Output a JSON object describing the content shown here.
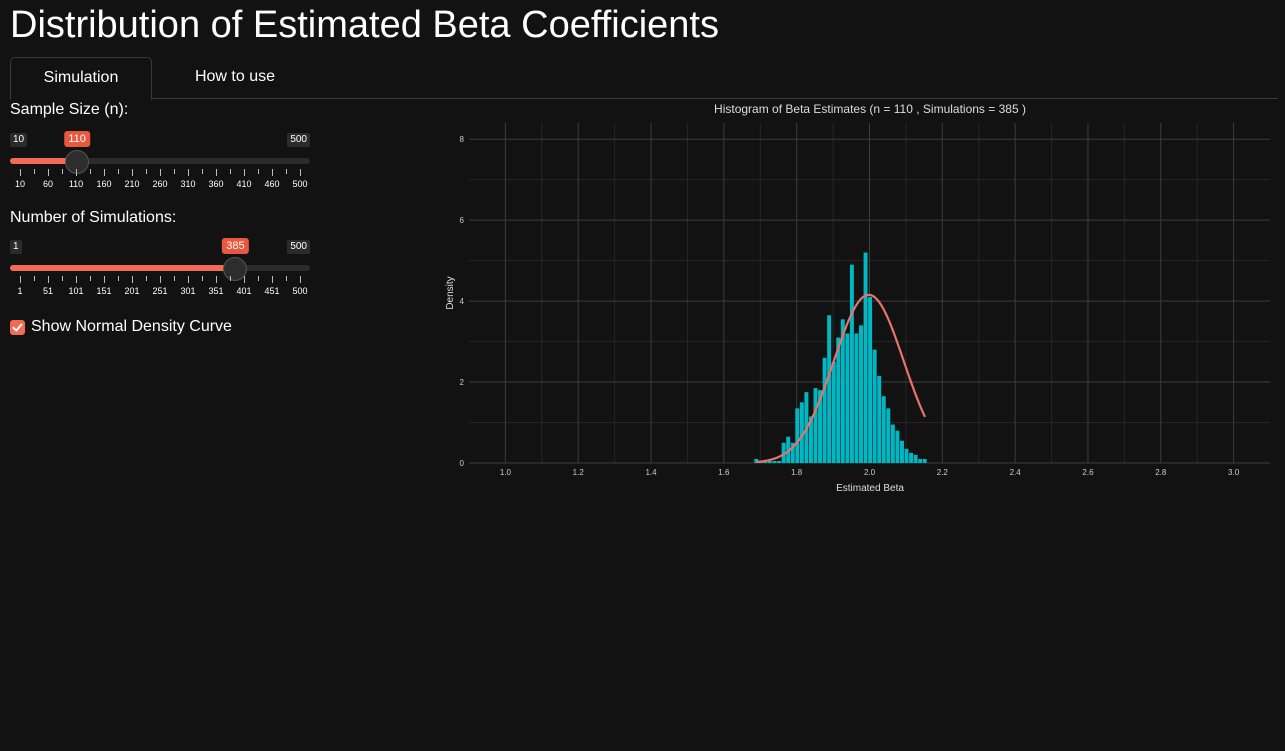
{
  "page": {
    "title": "Distribution of Estimated Beta Coefficients"
  },
  "tabs": [
    {
      "label": "Simulation",
      "active": true
    },
    {
      "label": "How to use",
      "active": false
    }
  ],
  "sample_size": {
    "label": "Sample Size (n):",
    "min": 10,
    "max": 500,
    "value": 110,
    "min_label": "10",
    "max_label": "500",
    "value_label": "110",
    "grid_labels": [
      "10",
      "60",
      "110",
      "160",
      "210",
      "260",
      "310",
      "360",
      "410",
      "460",
      "500"
    ]
  },
  "simulations": {
    "label": "Number of Simulations:",
    "min": 1,
    "max": 500,
    "value": 385,
    "min_label": "1",
    "max_label": "500",
    "value_label": "385",
    "grid_labels": [
      "1",
      "51",
      "101",
      "151",
      "201",
      "251",
      "301",
      "351",
      "401",
      "451",
      "500"
    ]
  },
  "normal_curve": {
    "label": "Show Normal Density Curve",
    "checked": true
  },
  "colors": {
    "background": "#121212",
    "accent": "#f26b52",
    "bar": "#00b8c4",
    "curve": "#e8736a"
  },
  "chart_data": {
    "type": "bar",
    "title": "Histogram of Beta Estimates (n = 110 , Simulations = 385 )",
    "xlabel": "Estimated Beta",
    "ylabel": "Density",
    "xlim": [
      0.9,
      3.1
    ],
    "ylim": [
      0,
      8.4
    ],
    "xticks": [
      "1.0",
      "1.2",
      "1.4",
      "1.6",
      "1.8",
      "2.0",
      "2.2",
      "2.4",
      "2.6",
      "2.8",
      "3.0"
    ],
    "yticks": [
      "0",
      "2",
      "4",
      "6",
      "8"
    ],
    "bin_width": 0.0125,
    "bins": [
      {
        "x": 1.69,
        "y": 0.1
      },
      {
        "x": 1.7025,
        "y": 0.05
      },
      {
        "x": 1.715,
        "y": 0.05
      },
      {
        "x": 1.7275,
        "y": 0.05
      },
      {
        "x": 1.74,
        "y": 0.05
      },
      {
        "x": 1.7525,
        "y": 0.05
      },
      {
        "x": 1.765,
        "y": 0.5
      },
      {
        "x": 1.7775,
        "y": 0.65
      },
      {
        "x": 1.79,
        "y": 0.5
      },
      {
        "x": 1.8025,
        "y": 1.35
      },
      {
        "x": 1.815,
        "y": 1.5
      },
      {
        "x": 1.8275,
        "y": 1.75
      },
      {
        "x": 1.84,
        "y": 1.15
      },
      {
        "x": 1.8525,
        "y": 1.85
      },
      {
        "x": 1.865,
        "y": 1.8
      },
      {
        "x": 1.8775,
        "y": 2.6
      },
      {
        "x": 1.89,
        "y": 3.65
      },
      {
        "x": 1.9025,
        "y": 2.5
      },
      {
        "x": 1.915,
        "y": 3.1
      },
      {
        "x": 1.9275,
        "y": 3.55
      },
      {
        "x": 1.94,
        "y": 3.2
      },
      {
        "x": 1.9525,
        "y": 4.9
      },
      {
        "x": 1.965,
        "y": 3.2
      },
      {
        "x": 1.9775,
        "y": 3.4
      },
      {
        "x": 1.99,
        "y": 5.2
      },
      {
        "x": 2.0025,
        "y": 4.1
      },
      {
        "x": 2.015,
        "y": 2.8
      },
      {
        "x": 2.0275,
        "y": 2.15
      },
      {
        "x": 2.04,
        "y": 1.65
      },
      {
        "x": 2.0525,
        "y": 1.35
      },
      {
        "x": 2.065,
        "y": 0.95
      },
      {
        "x": 2.0775,
        "y": 0.8
      },
      {
        "x": 2.09,
        "y": 0.55
      },
      {
        "x": 2.1025,
        "y": 0.35
      },
      {
        "x": 2.115,
        "y": 0.25
      },
      {
        "x": 2.1275,
        "y": 0.2
      },
      {
        "x": 2.14,
        "y": 0.1
      },
      {
        "x": 2.1525,
        "y": 0.1
      }
    ],
    "normal_curve": {
      "mean": 1.998,
      "sd": 0.096
    }
  }
}
